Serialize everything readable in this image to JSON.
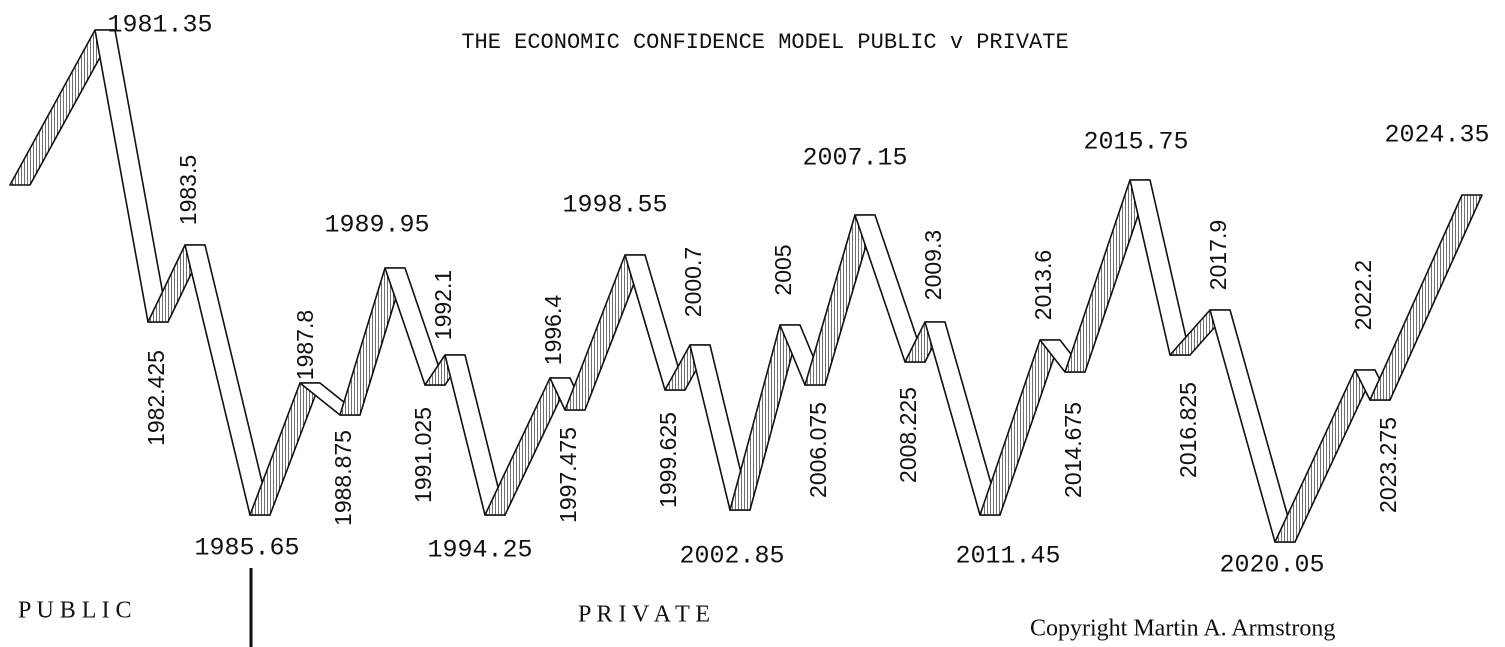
{
  "title": "THE ECONOMIC CONFIDENCE MODEL PUBLIC v PRIVATE",
  "turning_points": [
    "1981.35",
    "1982.425",
    "1983.5",
    "1985.65",
    "1987.8",
    "1988.875",
    "1989.95",
    "1991.025",
    "1992.1",
    "1994.25",
    "1996.4",
    "1997.475",
    "1998.55",
    "1999.625",
    "2000.7",
    "2002.85",
    "2005",
    "2006.075",
    "2007.15",
    "2008.225",
    "2009.3",
    "2011.45",
    "2013.6",
    "2014.675",
    "2015.75",
    "2016.825",
    "2017.9",
    "2020.05",
    "2022.2",
    "2023.275",
    "2024.35"
  ],
  "public_label": "P U B L I C",
  "private_label": "P R I V A T E",
  "copyright": "Copyright Martin A. Armstrong"
}
